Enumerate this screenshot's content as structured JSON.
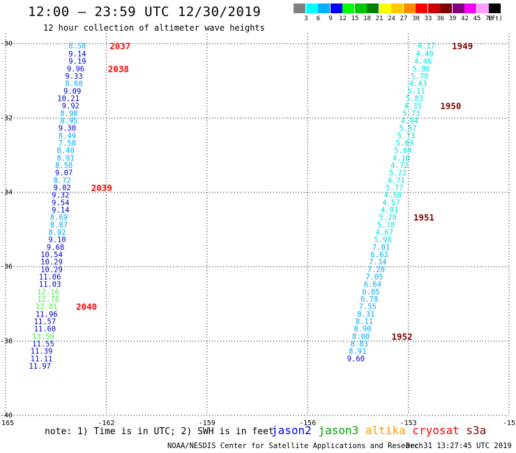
{
  "header": {
    "title": "12:00 – 23:59 UTC 12/30/2019",
    "subtitle": "12 hour collection of altimeter wave heights"
  },
  "color_scale": {
    "bins": [
      {
        "label": "3",
        "color": "#808080"
      },
      {
        "label": "6",
        "color": "#00ffff"
      },
      {
        "label": "9",
        "color": "#00b0ff"
      },
      {
        "label": "12",
        "color": "#0000ff"
      },
      {
        "label": "15",
        "color": "#00ff00"
      },
      {
        "label": "18",
        "color": "#00c800"
      },
      {
        "label": "21",
        "color": "#008000"
      },
      {
        "label": "24",
        "color": "#ffff00"
      },
      {
        "label": "27",
        "color": "#ffc800"
      },
      {
        "label": "30",
        "color": "#ff8c00"
      },
      {
        "label": "33",
        "color": "#ff0000"
      },
      {
        "label": "36",
        "color": "#cc0000"
      },
      {
        "label": "39",
        "color": "#800000"
      },
      {
        "label": "42",
        "color": "#800080"
      },
      {
        "label": "45",
        "color": "#ff00ff"
      },
      {
        "label": "70",
        "color": "#ff9cff"
      },
      {
        "label": "",
        "color": "#000000"
      }
    ],
    "unit": "(ft)"
  },
  "chart_data": {
    "type": "scatter",
    "xlim": [
      -165,
      -150
    ],
    "ylim": [
      -40,
      -29.8
    ],
    "x_ticks": [
      "-165",
      "-162",
      "-159",
      "-156",
      "-153",
      "-15"
    ],
    "y_ticks": [
      "-30",
      "-32",
      "-34",
      "-36",
      "-38",
      "-40"
    ],
    "grid": "dotted",
    "colors": {
      "cyan": "#00e0e0",
      "sky": "#00a8ff",
      "blue": "#0000cc",
      "green": "#44ee44",
      "time_red": "#ff0000",
      "time_maroon": "#800000"
    },
    "series": [
      {
        "name": "jason2",
        "points": [
          {
            "x": -162.6,
            "y": -30.05,
            "v": "8.58",
            "c": "sky"
          },
          {
            "x": -162.6,
            "y": -30.27,
            "v": "9.14",
            "c": "blue"
          },
          {
            "x": -162.6,
            "y": -30.47,
            "v": "9.19",
            "c": "blue"
          },
          {
            "x": -162.65,
            "y": -30.67,
            "v": "9.96",
            "c": "blue"
          },
          {
            "x": -162.7,
            "y": -30.87,
            "v": "9.33",
            "c": "blue"
          },
          {
            "x": -162.7,
            "y": -31.07,
            "v": "8.60",
            "c": "sky"
          },
          {
            "x": -162.75,
            "y": -31.27,
            "v": "9.09",
            "c": "blue"
          },
          {
            "x": -162.8,
            "y": -31.47,
            "v": "10.21",
            "c": "blue"
          },
          {
            "x": -162.8,
            "y": -31.67,
            "v": "9.92",
            "c": "blue"
          },
          {
            "x": -162.85,
            "y": -31.87,
            "v": "8.98",
            "c": "sky"
          },
          {
            "x": -162.85,
            "y": -32.07,
            "v": "8.95",
            "c": "sky"
          },
          {
            "x": -162.9,
            "y": -32.27,
            "v": "9.30",
            "c": "blue"
          },
          {
            "x": -162.9,
            "y": -32.47,
            "v": "8.49",
            "c": "sky"
          },
          {
            "x": -162.9,
            "y": -32.67,
            "v": "7.58",
            "c": "sky"
          },
          {
            "x": -162.95,
            "y": -32.87,
            "v": "8.40",
            "c": "sky"
          },
          {
            "x": -162.95,
            "y": -33.07,
            "v": "8.91",
            "c": "sky"
          },
          {
            "x": -163.0,
            "y": -33.27,
            "v": "8.50",
            "c": "sky"
          },
          {
            "x": -163.0,
            "y": -33.47,
            "v": "9.07",
            "c": "blue"
          },
          {
            "x": -163.05,
            "y": -33.67,
            "v": "8.72",
            "c": "sky"
          },
          {
            "x": -163.05,
            "y": -33.87,
            "v": "9.02",
            "c": "blue"
          },
          {
            "x": -163.1,
            "y": -34.07,
            "v": "9.32",
            "c": "blue"
          },
          {
            "x": -163.1,
            "y": -34.27,
            "v": "9.54",
            "c": "blue"
          },
          {
            "x": -163.1,
            "y": -34.47,
            "v": "9.14",
            "c": "blue"
          },
          {
            "x": -163.15,
            "y": -34.67,
            "v": "8.69",
            "c": "sky"
          },
          {
            "x": -163.15,
            "y": -34.87,
            "v": "8.87",
            "c": "sky"
          },
          {
            "x": -163.2,
            "y": -35.07,
            "v": "8.92",
            "c": "sky"
          },
          {
            "x": -163.2,
            "y": -35.27,
            "v": "9.10",
            "c": "blue"
          },
          {
            "x": -163.25,
            "y": -35.47,
            "v": "9.68",
            "c": "blue"
          },
          {
            "x": -163.3,
            "y": -35.67,
            "v": "10.54",
            "c": "blue"
          },
          {
            "x": -163.3,
            "y": -35.87,
            "v": "10.29",
            "c": "blue"
          },
          {
            "x": -163.3,
            "y": -36.07,
            "v": "10.29",
            "c": "blue"
          },
          {
            "x": -163.35,
            "y": -36.27,
            "v": "11.06",
            "c": "blue"
          },
          {
            "x": -163.35,
            "y": -36.47,
            "v": "11.03",
            "c": "blue"
          },
          {
            "x": -163.4,
            "y": -36.67,
            "v": "12.16",
            "c": "green"
          },
          {
            "x": -163.4,
            "y": -36.87,
            "v": "12.78",
            "c": "green"
          },
          {
            "x": -163.45,
            "y": -37.07,
            "v": "12.81",
            "c": "green"
          },
          {
            "x": -163.45,
            "y": -37.27,
            "v": "11.96",
            "c": "blue"
          },
          {
            "x": -163.5,
            "y": -37.47,
            "v": "11.57",
            "c": "blue"
          },
          {
            "x": -163.5,
            "y": -37.67,
            "v": "11.60",
            "c": "blue"
          },
          {
            "x": -163.55,
            "y": -37.87,
            "v": "13.50",
            "c": "green"
          },
          {
            "x": -163.55,
            "y": -38.07,
            "v": "11.55",
            "c": "blue"
          },
          {
            "x": -163.6,
            "y": -38.27,
            "v": "11.39",
            "c": "blue"
          },
          {
            "x": -163.6,
            "y": -38.47,
            "v": "11.11",
            "c": "blue"
          },
          {
            "x": -163.65,
            "y": -38.67,
            "v": "11.97",
            "c": "blue"
          }
        ]
      },
      {
        "name": "cryosat",
        "points": [
          {
            "x": -152.2,
            "y": -30.05,
            "v": "4.17",
            "c": "cyan"
          },
          {
            "x": -152.25,
            "y": -30.27,
            "v": "4.40",
            "c": "cyan"
          },
          {
            "x": -152.3,
            "y": -30.47,
            "v": "4.46",
            "c": "cyan"
          },
          {
            "x": -152.35,
            "y": -30.67,
            "v": "5.86",
            "c": "cyan"
          },
          {
            "x": -152.4,
            "y": -30.87,
            "v": "5.70",
            "c": "cyan"
          },
          {
            "x": -152.45,
            "y": -31.07,
            "v": "4.43",
            "c": "cyan"
          },
          {
            "x": -152.5,
            "y": -31.27,
            "v": "5.11",
            "c": "cyan"
          },
          {
            "x": -152.55,
            "y": -31.47,
            "v": "5.83",
            "c": "cyan"
          },
          {
            "x": -152.6,
            "y": -31.67,
            "v": "4.35",
            "c": "cyan"
          },
          {
            "x": -152.65,
            "y": -31.87,
            "v": "5.73",
            "c": "cyan"
          },
          {
            "x": -152.7,
            "y": -32.07,
            "v": "4.94",
            "c": "cyan"
          },
          {
            "x": -152.75,
            "y": -32.27,
            "v": "5.57",
            "c": "cyan"
          },
          {
            "x": -152.8,
            "y": -32.47,
            "v": "5.73",
            "c": "cyan"
          },
          {
            "x": -152.85,
            "y": -32.67,
            "v": "5.89",
            "c": "cyan"
          },
          {
            "x": -152.9,
            "y": -32.87,
            "v": "5.84",
            "c": "cyan"
          },
          {
            "x": -152.95,
            "y": -33.07,
            "v": "4.10",
            "c": "cyan"
          },
          {
            "x": -153.0,
            "y": -33.27,
            "v": "4.72",
            "c": "cyan"
          },
          {
            "x": -153.05,
            "y": -33.47,
            "v": "5.22",
            "c": "cyan"
          },
          {
            "x": -153.1,
            "y": -33.67,
            "v": "4.71",
            "c": "cyan"
          },
          {
            "x": -153.15,
            "y": -33.87,
            "v": "5.77",
            "c": "cyan"
          },
          {
            "x": -153.2,
            "y": -34.07,
            "v": "4.58",
            "c": "cyan"
          },
          {
            "x": -153.25,
            "y": -34.27,
            "v": "4.57",
            "c": "cyan"
          },
          {
            "x": -153.3,
            "y": -34.47,
            "v": "4.91",
            "c": "cyan"
          },
          {
            "x": -153.35,
            "y": -34.67,
            "v": "5.29",
            "c": "cyan"
          },
          {
            "x": -153.4,
            "y": -34.87,
            "v": "5.78",
            "c": "cyan"
          },
          {
            "x": -153.45,
            "y": -35.07,
            "v": "4.67",
            "c": "cyan"
          },
          {
            "x": -153.5,
            "y": -35.27,
            "v": "5.98",
            "c": "cyan"
          },
          {
            "x": -153.55,
            "y": -35.47,
            "v": "7.01",
            "c": "sky"
          },
          {
            "x": -153.6,
            "y": -35.67,
            "v": "6.63",
            "c": "sky"
          },
          {
            "x": -153.65,
            "y": -35.87,
            "v": "7.34",
            "c": "sky"
          },
          {
            "x": -153.7,
            "y": -36.07,
            "v": "7.20",
            "c": "sky"
          },
          {
            "x": -153.75,
            "y": -36.27,
            "v": "7.05",
            "c": "sky"
          },
          {
            "x": -153.8,
            "y": -36.47,
            "v": "6.64",
            "c": "sky"
          },
          {
            "x": -153.85,
            "y": -36.67,
            "v": "6.05",
            "c": "sky"
          },
          {
            "x": -153.9,
            "y": -36.87,
            "v": "6.78",
            "c": "sky"
          },
          {
            "x": -153.95,
            "y": -37.07,
            "v": "7.55",
            "c": "sky"
          },
          {
            "x": -154.0,
            "y": -37.27,
            "v": "8.31",
            "c": "sky"
          },
          {
            "x": -154.05,
            "y": -37.47,
            "v": "8.11",
            "c": "sky"
          },
          {
            "x": -154.1,
            "y": -37.67,
            "v": "8.90",
            "c": "sky"
          },
          {
            "x": -154.15,
            "y": -37.87,
            "v": "8.00",
            "c": "sky"
          },
          {
            "x": -154.2,
            "y": -38.07,
            "v": "8.83",
            "c": "sky"
          },
          {
            "x": -154.25,
            "y": -38.27,
            "v": "8.91",
            "c": "sky"
          },
          {
            "x": -154.3,
            "y": -38.47,
            "v": "9.60",
            "c": "blue"
          }
        ]
      }
    ],
    "time_labels": [
      {
        "x": -161.9,
        "y": -30.05,
        "t": "2037",
        "c": "time_red"
      },
      {
        "x": -161.95,
        "y": -30.67,
        "t": "2038",
        "c": "time_red"
      },
      {
        "x": -162.45,
        "y": -33.87,
        "t": "2039",
        "c": "time_red"
      },
      {
        "x": -162.9,
        "y": -37.07,
        "t": "2040",
        "c": "time_red"
      },
      {
        "x": -151.7,
        "y": -30.05,
        "t": "1949",
        "c": "time_maroon"
      },
      {
        "x": -152.05,
        "y": -31.67,
        "t": "1950",
        "c": "time_maroon"
      },
      {
        "x": -152.85,
        "y": -34.67,
        "t": "1951",
        "c": "time_maroon"
      },
      {
        "x": -153.5,
        "y": -37.87,
        "t": "1952",
        "c": "time_maroon"
      }
    ]
  },
  "footer": {
    "note": "note: 1) Time is in UTC; 2) SWH is in feet",
    "satellites": [
      {
        "name": "jason2",
        "color": "#0000ff"
      },
      {
        "name": "jason3",
        "color": "#00a000"
      },
      {
        "name": "altika",
        "color": "#ff9900"
      },
      {
        "name": "cryosat",
        "color": "#ff0000"
      },
      {
        "name": "s3a",
        "color": "#800000"
      }
    ],
    "credit": "NOAA/NESDIS Center for Satellite Applications and Research",
    "timestamp": "Dec 31 13:27:45 UTC 2019"
  }
}
